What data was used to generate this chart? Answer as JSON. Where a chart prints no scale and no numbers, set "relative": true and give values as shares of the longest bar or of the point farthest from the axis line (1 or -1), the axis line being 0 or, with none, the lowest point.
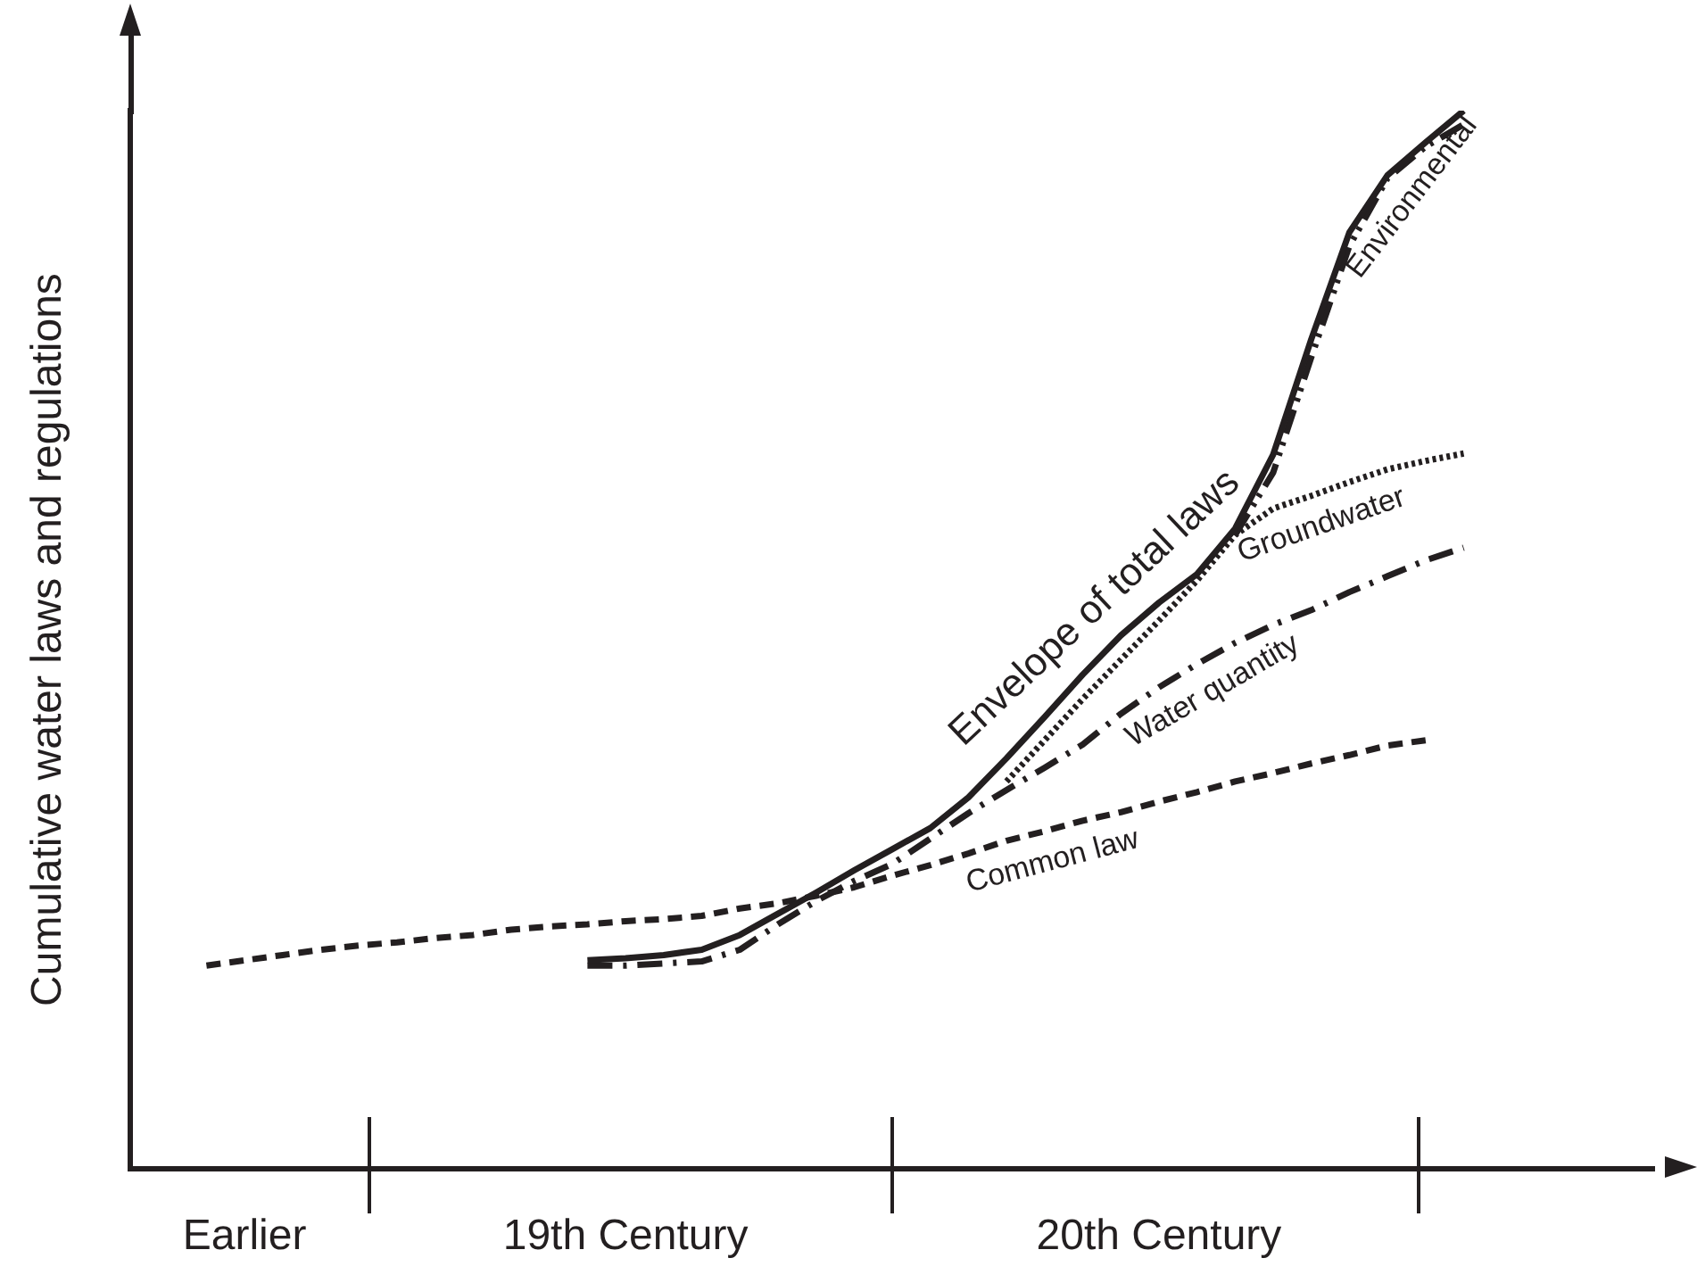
{
  "chart_data": {
    "type": "line",
    "relative": true,
    "ylabel": "Cumulative water laws and regulations",
    "categories": [
      null,
      null,
      null,
      "Earlier",
      null,
      null,
      null,
      null,
      null,
      null,
      null,
      null,
      null,
      "19th Century",
      null,
      null,
      null,
      null,
      null,
      null,
      null,
      null,
      null,
      null,
      null,
      null,
      null,
      "20th Century",
      null,
      null,
      null,
      null,
      null,
      null,
      null,
      null,
      null,
      null,
      null,
      null,
      null
    ],
    "grid": false,
    "legend": false,
    "marker": "none",
    "series": [
      {
        "name": "Envelope of total laws",
        "color": "#231f20",
        "line_style": "solid",
        "values": [
          null,
          null,
          null,
          null,
          null,
          null,
          null,
          null,
          null,
          null,
          null,
          null,
          0.197,
          0.199,
          0.202,
          0.207,
          0.221,
          0.241,
          0.261,
          0.282,
          0.302,
          0.322,
          0.351,
          0.388,
          0.427,
          0.467,
          0.504,
          0.535,
          0.562,
          0.605,
          0.675,
          0.784,
          0.885,
          0.939,
          0.97,
          1,
          null,
          null,
          null,
          null,
          null
        ]
      },
      {
        "name": "Environmental",
        "color": "#231f20",
        "line_style": "dashdotdot",
        "values": [
          null,
          null,
          null,
          null,
          null,
          null,
          null,
          null,
          null,
          null,
          null,
          null,
          null,
          null,
          null,
          null,
          null,
          null,
          null,
          null,
          null,
          null,
          null,
          null,
          null,
          null,
          null,
          null,
          null,
          0.599,
          0.658,
          0.767,
          0.872,
          0.936,
          0.966,
          0.987,
          null,
          null,
          null,
          null,
          null
        ]
      },
      {
        "name": "Groundwater",
        "color": "#231f20",
        "line_style": "dotted",
        "values": [
          null,
          null,
          null,
          null,
          null,
          null,
          null,
          null,
          null,
          null,
          null,
          null,
          null,
          null,
          null,
          null,
          null,
          null,
          null,
          null,
          null,
          null,
          null,
          0.366,
          0.405,
          0.444,
          0.481,
          0.518,
          0.556,
          0.599,
          0.624,
          0.636,
          0.649,
          0.661,
          0.669,
          0.676,
          null,
          null,
          null,
          null,
          null
        ]
      },
      {
        "name": "Water quantity",
        "color": "#231f20",
        "line_style": "dashdot",
        "values": [
          null,
          null,
          null,
          null,
          null,
          null,
          null,
          null,
          null,
          null,
          null,
          null,
          0.192,
          0.192,
          0.194,
          0.196,
          0.207,
          0.231,
          0.253,
          0.272,
          0.288,
          0.312,
          0.336,
          0.358,
          0.379,
          0.401,
          0.43,
          0.455,
          0.477,
          0.497,
          0.514,
          0.528,
          0.545,
          0.56,
          0.575,
          0.587,
          null,
          null,
          null,
          null,
          null
        ]
      },
      {
        "name": "Common law",
        "color": "#231f20",
        "line_style": "dashed",
        "values": [
          null,
          null,
          0.192,
          0.197,
          0.202,
          0.207,
          0.211,
          0.214,
          0.218,
          0.221,
          0.226,
          0.229,
          0.231,
          0.234,
          0.236,
          0.239,
          0.246,
          0.251,
          0.258,
          0.266,
          0.277,
          0.287,
          0.298,
          0.31,
          0.319,
          0.329,
          0.337,
          0.347,
          0.356,
          0.366,
          0.374,
          0.383,
          0.391,
          0.4,
          0.405,
          null,
          null,
          null,
          null,
          null,
          null
        ]
      }
    ]
  }
}
